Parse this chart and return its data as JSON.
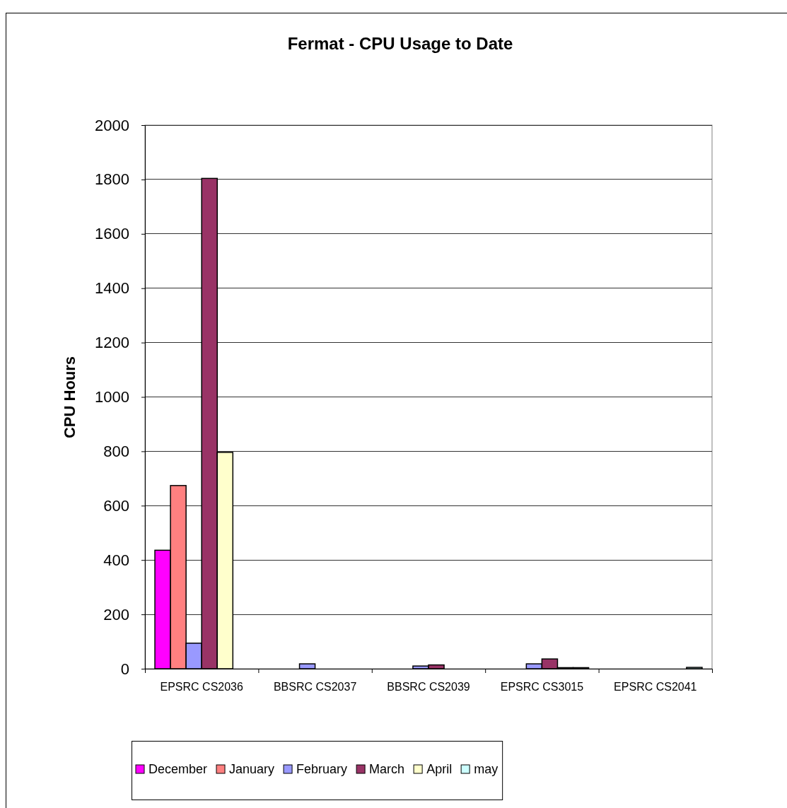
{
  "chart_data": {
    "type": "bar",
    "title": "Fermat - CPU Usage to Date",
    "ylabel": "CPU Hours",
    "categories": [
      "EPSRC CS2036",
      "BBSRC CS2037",
      "BBSRC CS2039",
      "EPSRC CS3015",
      "EPSRC CS2041"
    ],
    "series": [
      {
        "name": "December",
        "color": "#ff00ff",
        "values": [
          436,
          0,
          0,
          0,
          0
        ]
      },
      {
        "name": "January",
        "color": "#ff8080",
        "values": [
          674,
          0,
          0,
          0,
          0
        ]
      },
      {
        "name": "February",
        "color": "#9999ff",
        "values": [
          94,
          18,
          10,
          18,
          0
        ]
      },
      {
        "name": "March",
        "color": "#993366",
        "values": [
          1804,
          0,
          14,
          36,
          0
        ]
      },
      {
        "name": "April",
        "color": "#ffffcc",
        "values": [
          796,
          0,
          0,
          4,
          0
        ]
      },
      {
        "name": "may",
        "color": "#ccffff",
        "values": [
          0,
          0,
          0,
          4,
          5
        ]
      }
    ],
    "ylim": [
      0,
      2000
    ],
    "yticks": [
      0,
      200,
      400,
      600,
      800,
      1000,
      1200,
      1400,
      1600,
      1800,
      2000
    ],
    "grid": "y",
    "legend": "bottom"
  }
}
